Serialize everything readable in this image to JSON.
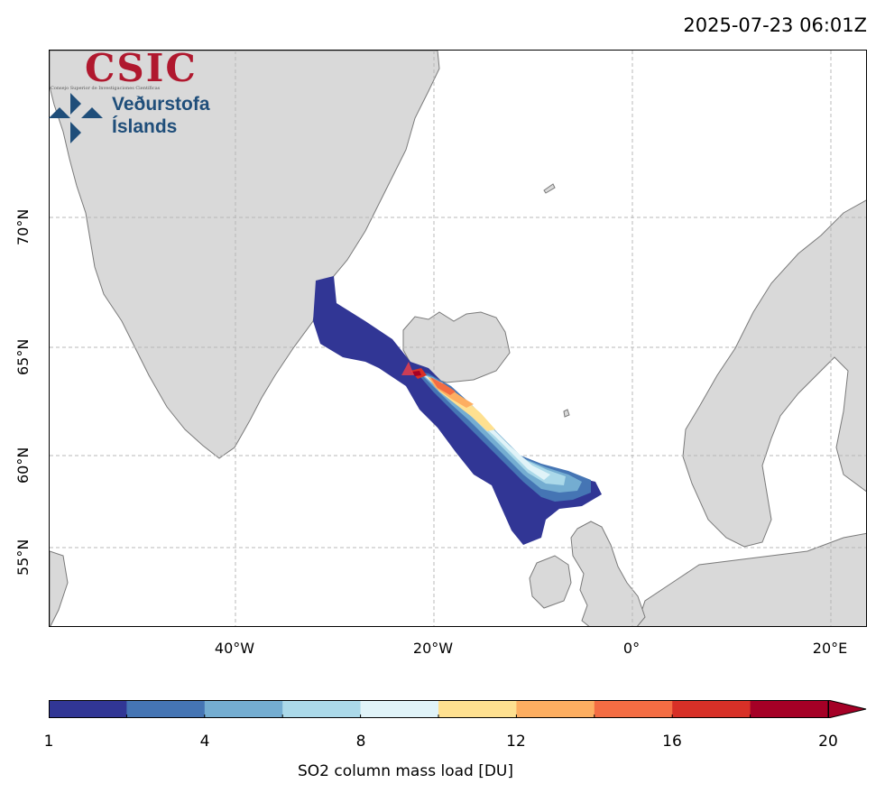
{
  "timestamp": "2025-07-23 06:01Z",
  "logos": {
    "csic": "CSIC",
    "csic_subtitle": "Consejo Superior de Investigaciones Científicas",
    "vedur_line1": "Veðurstofa",
    "vedur_line2": "Íslands"
  },
  "map": {
    "lat_ticks": [
      "70°N",
      "65°N",
      "60°N",
      "55°N"
    ],
    "lon_ticks": [
      "40°W",
      "20°W",
      "0°",
      "20°E"
    ],
    "colors": {
      "land": "#d9d9d9",
      "coast": "#7a7a7a",
      "grid": "#b8b8b8",
      "source_marker": "#ff4040"
    }
  },
  "colorbar": {
    "label": "SO2 column mass load [DU]",
    "tick_labels": [
      "1",
      "4",
      "8",
      "12",
      "16",
      "20"
    ],
    "bins": [
      "#313695",
      "#4575b4",
      "#74add1",
      "#abd9e9",
      "#e0f3f8",
      "#fee090",
      "#fdae61",
      "#f46d43",
      "#d73027",
      "#a50026"
    ],
    "extend_color": "#a50026"
  }
}
